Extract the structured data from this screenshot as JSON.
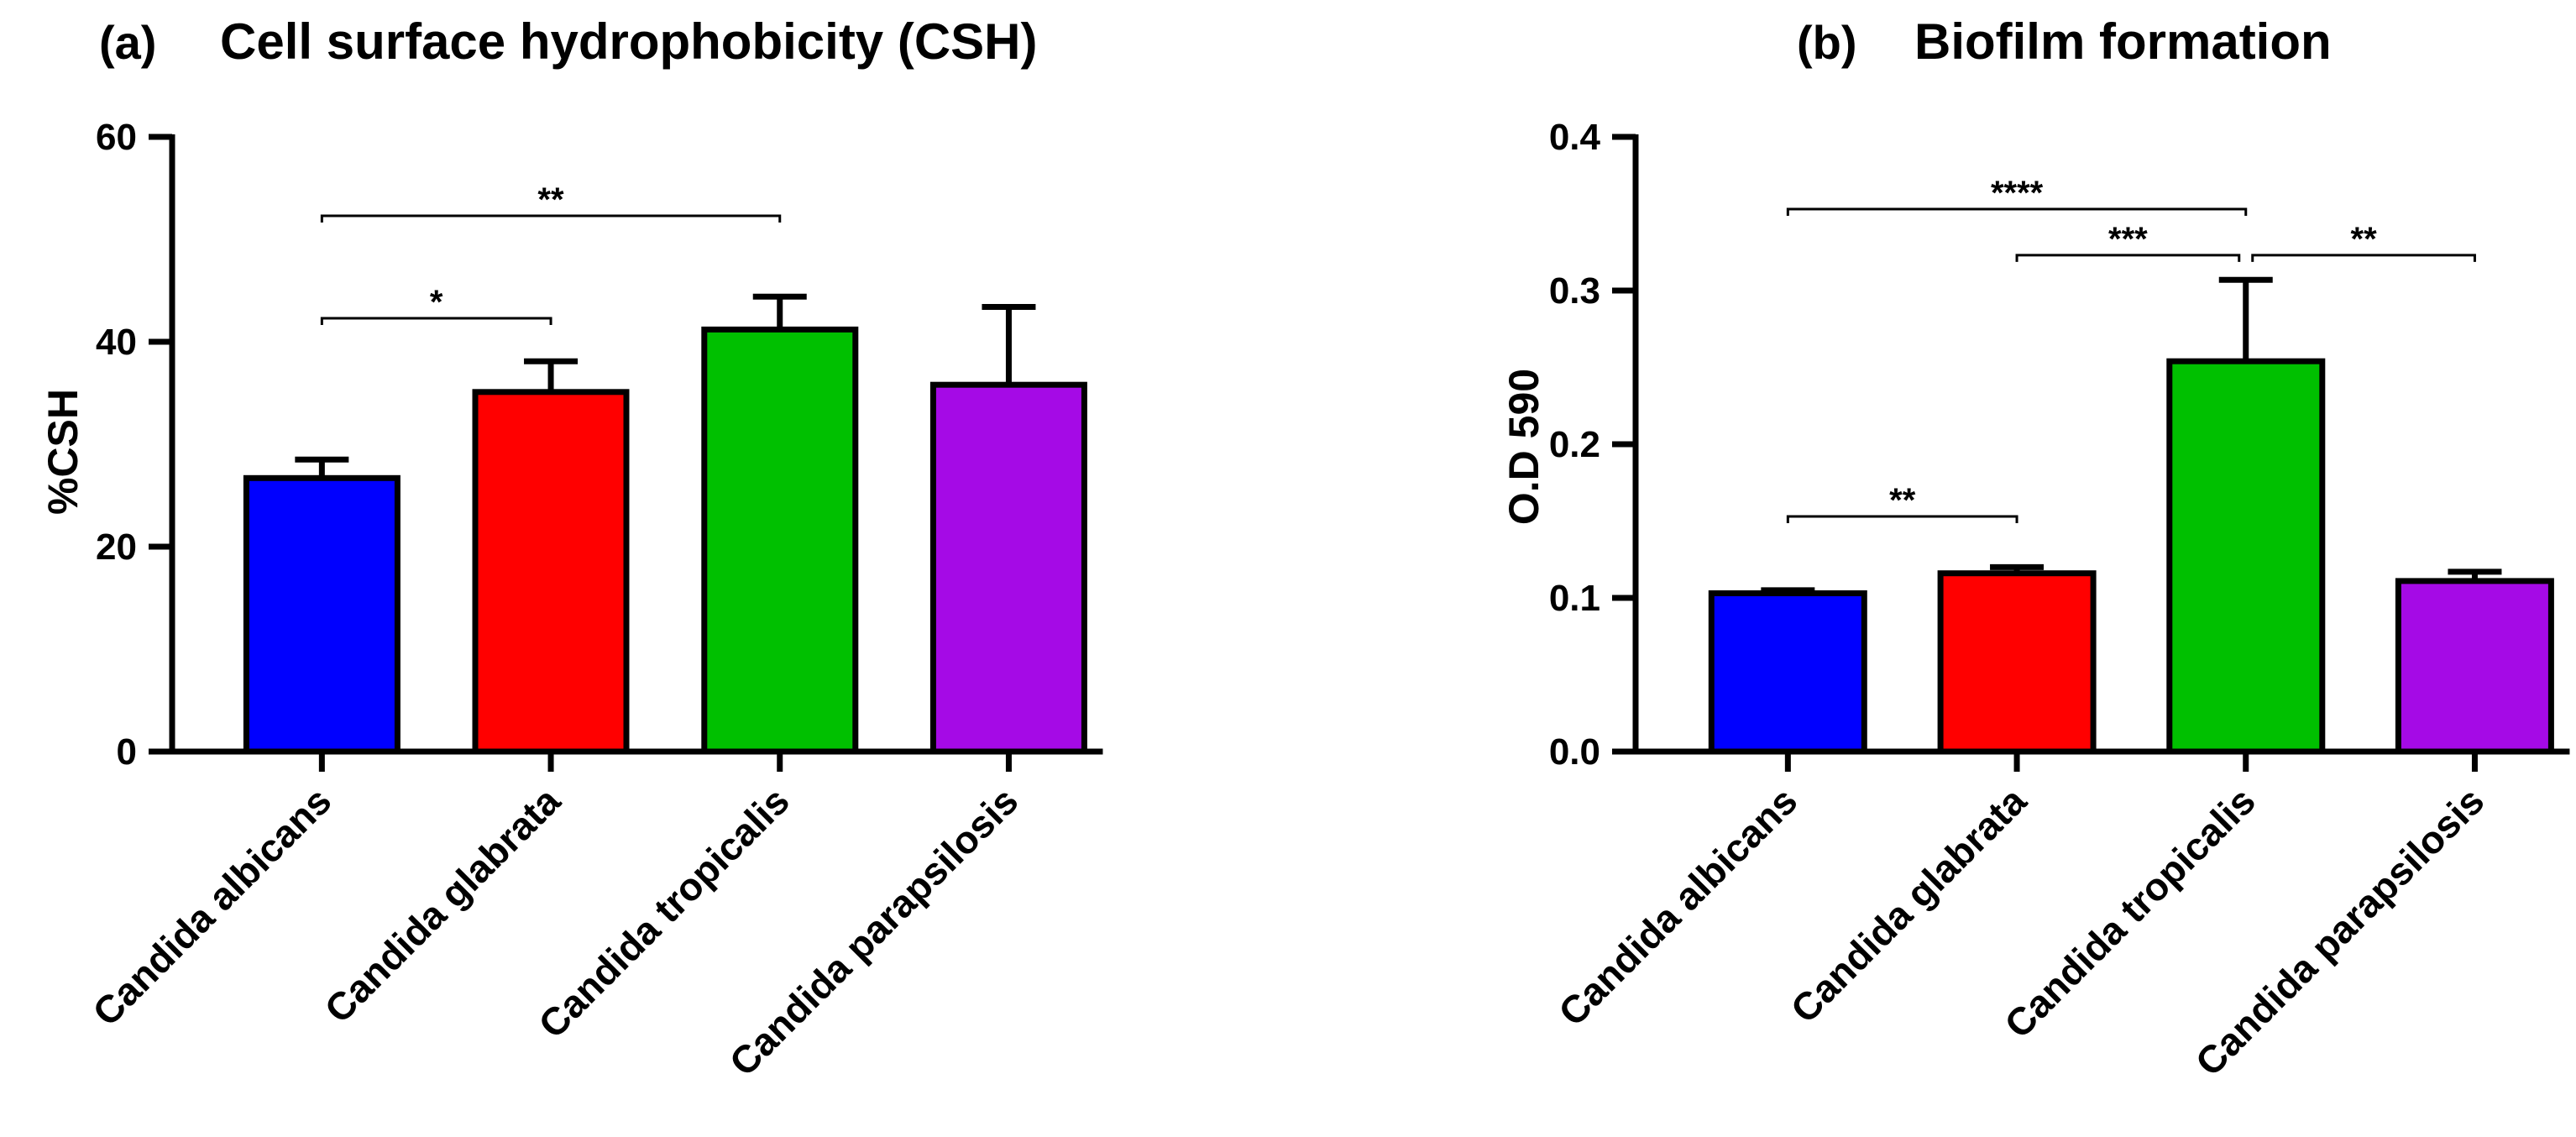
{
  "chart_data": [
    {
      "type": "bar",
      "panel_label": "(a)",
      "title": "Cell surface hydrophobicity (CSH)",
      "xlabel": "",
      "ylabel": "%CSH",
      "ylim": [
        0,
        60
      ],
      "yticks": [
        "0",
        "20",
        "40",
        "60"
      ],
      "ytick_values": [
        0,
        20,
        40,
        60
      ],
      "categories": [
        "Candida albicans",
        "Candida glabrata",
        "Candida tropicalis",
        "Candida parapsilosis"
      ],
      "values": [
        26.7,
        35.1,
        41.2,
        35.8
      ],
      "error": [
        1.8,
        3.0,
        3.2,
        7.6
      ],
      "colors": [
        "#0000ff",
        "#ff0000",
        "#00c000",
        "#a50ae6"
      ],
      "grid": false,
      "legend": "none",
      "significance": [
        {
          "from": 0,
          "to": 2,
          "label": "**",
          "y": 52.3
        },
        {
          "from": 0,
          "to": 1,
          "label": "*",
          "y": 42.3
        }
      ]
    },
    {
      "type": "bar",
      "panel_label": "(b)",
      "title": "Biofilm formation",
      "xlabel": "",
      "ylabel": "O.D 590",
      "ylim": [
        0,
        0.4
      ],
      "yticks": [
        "0.0",
        "0.1",
        "0.2",
        "0.3",
        "0.4"
      ],
      "ytick_values": [
        0,
        0.1,
        0.2,
        0.3,
        0.4
      ],
      "categories": [
        "Candida albicans",
        "Candida glabrata",
        "Candida tropicalis",
        "Candida parapsilosis"
      ],
      "values": [
        0.103,
        0.116,
        0.254,
        0.111
      ],
      "error": [
        0.002,
        0.004,
        0.053,
        0.006
      ],
      "colors": [
        "#0000ff",
        "#ff0000",
        "#00c000",
        "#a50ae6"
      ],
      "grid": false,
      "legend": "none",
      "significance": [
        {
          "from": 0,
          "to": 2,
          "label": "****",
          "y": 0.353
        },
        {
          "from": 1,
          "to": 2,
          "label": "***",
          "y": 0.323
        },
        {
          "from": 2,
          "to": 3,
          "label": "**",
          "y": 0.323
        },
        {
          "from": 0,
          "to": 1,
          "label": "**",
          "y": 0.153
        }
      ]
    }
  ]
}
